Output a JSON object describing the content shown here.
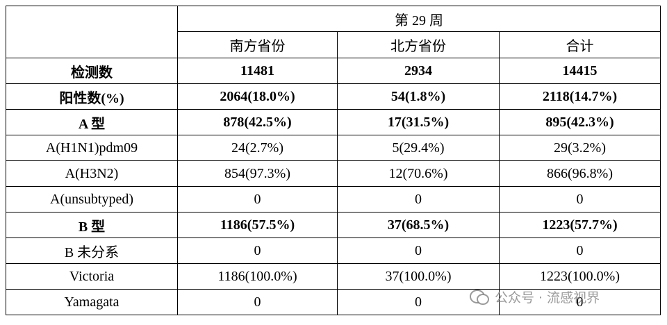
{
  "table": {
    "header": {
      "group": "第 29 周",
      "columns": [
        "南方省份",
        "北方省份",
        "合计"
      ]
    },
    "rows": [
      {
        "bold": true,
        "cells": [
          "检测数",
          "11481",
          "2934",
          "14415"
        ]
      },
      {
        "bold": true,
        "cells": [
          "阳性数(%)",
          "2064(18.0%)",
          "54(1.8%)",
          "2118(14.7%)"
        ]
      },
      {
        "bold": true,
        "cells": [
          "A 型",
          "878(42.5%)",
          "17(31.5%)",
          "895(42.3%)"
        ]
      },
      {
        "bold": false,
        "cells": [
          "A(H1N1)pdm09",
          "24(2.7%)",
          "5(29.4%)",
          "29(3.2%)"
        ]
      },
      {
        "bold": false,
        "cells": [
          "A(H3N2)",
          "854(97.3%)",
          "12(70.6%)",
          "866(96.8%)"
        ]
      },
      {
        "bold": false,
        "cells": [
          "A(unsubtyped)",
          "0",
          "0",
          "0"
        ]
      },
      {
        "bold": true,
        "cells": [
          "B 型",
          "1186(57.5%)",
          "37(68.5%)",
          "1223(57.7%)"
        ]
      },
      {
        "bold": false,
        "cells": [
          "B 未分系",
          "0",
          "0",
          "0"
        ]
      },
      {
        "bold": false,
        "cells": [
          "Victoria",
          "1186(100.0%)",
          "37(100.0%)",
          "1223(100.0%)"
        ]
      },
      {
        "bold": false,
        "cells": [
          "Yamagata",
          "0",
          "0",
          "0"
        ]
      }
    ]
  },
  "watermark": "公众号 · 流感视界"
}
